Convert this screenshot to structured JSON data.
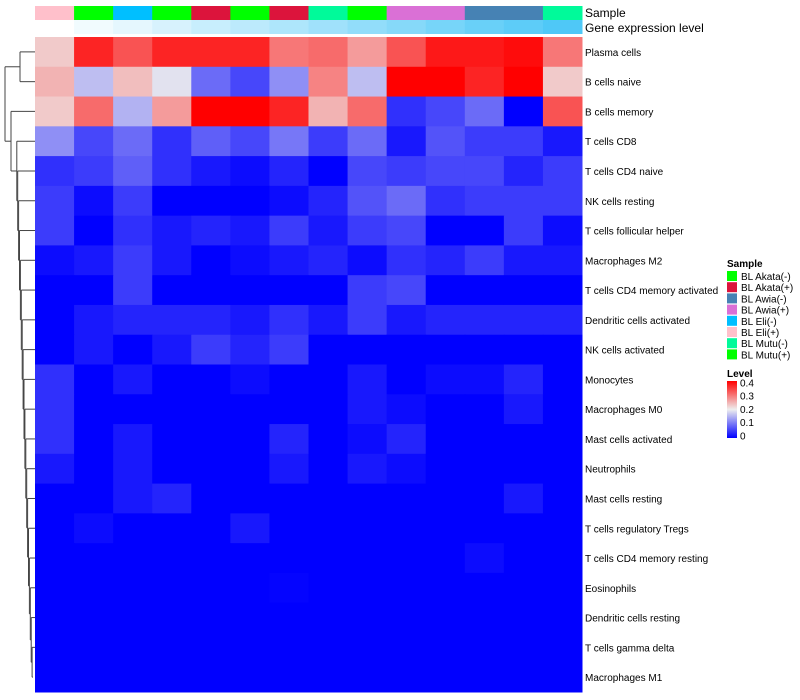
{
  "chart_data": {
    "type": "heatmap",
    "annotation_labels": {
      "sample": "Sample",
      "gene": "Gene expression level"
    },
    "columns_sample": [
      "BL Eli(+)",
      "BL Akata(-)",
      "BL Eli(-)",
      "BL Mutu(+)",
      "BL Akata(+)",
      "BL Akata(-)",
      "BL Akata(+)",
      "BL Mutu(-)",
      "BL Mutu(+)",
      "BL Awia(+)",
      "BL Awia(+)",
      "BL Awia(-)",
      "BL Awia(-)",
      "BL Mutu(-)"
    ],
    "gene_expression_level_relative": [
      0,
      0.08,
      0.15,
      0.23,
      0.31,
      0.38,
      0.46,
      0.54,
      0.62,
      0.69,
      0.77,
      0.85,
      0.92,
      1
    ],
    "rows": [
      "Plasma cells",
      "B cells naive",
      "B cells memory",
      "T cells CD8",
      "T cells CD4 naive",
      "NK cells resting",
      "T cells follicular helper",
      "Macrophages M2",
      "T cells CD4 memory activated",
      "Dendritic cells activated",
      "NK cells activated",
      "Monocytes",
      "Macrophages M0",
      "Mast cells activated",
      "Neutrophils",
      "Mast cells resting",
      "T cells regulatory  Tregs",
      "T cells CD4 memory resting",
      "Eosinophils",
      "Dendritic cells resting",
      "T cells gamma delta",
      "Macrophages M1"
    ],
    "values": [
      [
        0.23,
        0.37,
        0.33,
        0.37,
        0.37,
        0.37,
        0.3,
        0.31,
        0.27,
        0.33,
        0.38,
        0.38,
        0.39,
        0.3
      ],
      [
        0.25,
        0.16,
        0.24,
        0.19,
        0.09,
        0.06,
        0.12,
        0.29,
        0.16,
        0.41,
        0.41,
        0.37,
        0.41,
        0.23
      ],
      [
        0.23,
        0.31,
        0.15,
        0.27,
        0.4,
        0.41,
        0.37,
        0.25,
        0.31,
        0.04,
        0.06,
        0.09,
        0.0,
        0.33
      ],
      [
        0.12,
        0.06,
        0.09,
        0.04,
        0.08,
        0.06,
        0.1,
        0.05,
        0.09,
        0.02,
        0.07,
        0.05,
        0.05,
        0.02
      ],
      [
        0.04,
        0.05,
        0.08,
        0.04,
        0.02,
        0.01,
        0.03,
        0.0,
        0.06,
        0.05,
        0.06,
        0.06,
        0.03,
        0.05
      ],
      [
        0.05,
        0.01,
        0.05,
        0.0,
        0.0,
        0.0,
        0.01,
        0.03,
        0.07,
        0.09,
        0.04,
        0.05,
        0.05,
        0.05
      ],
      [
        0.05,
        0.0,
        0.04,
        0.02,
        0.03,
        0.02,
        0.05,
        0.02,
        0.05,
        0.06,
        0.0,
        0.0,
        0.05,
        0.01
      ],
      [
        0.01,
        0.02,
        0.05,
        0.02,
        0.0,
        0.01,
        0.02,
        0.03,
        0.01,
        0.04,
        0.03,
        0.05,
        0.02,
        0.02
      ],
      [
        0.0,
        0.0,
        0.05,
        0.0,
        0.0,
        0.0,
        0.0,
        0.0,
        0.05,
        0.06,
        0.0,
        0.0,
        0.0,
        0.0
      ],
      [
        0.0,
        0.02,
        0.03,
        0.03,
        0.03,
        0.02,
        0.04,
        0.02,
        0.05,
        0.02,
        0.03,
        0.03,
        0.03,
        0.03
      ],
      [
        0.0,
        0.02,
        0.0,
        0.02,
        0.05,
        0.03,
        0.05,
        0.0,
        0.0,
        0.0,
        0.0,
        0.0,
        0.0,
        0.0
      ],
      [
        0.04,
        0.0,
        0.02,
        0.0,
        0.0,
        0.01,
        0.0,
        0.0,
        0.02,
        0.0,
        0.01,
        0.01,
        0.03,
        0.0
      ],
      [
        0.04,
        0.0,
        0.0,
        0.0,
        0.0,
        0.0,
        0.0,
        0.0,
        0.02,
        0.01,
        0.0,
        0.0,
        0.02,
        0.0
      ],
      [
        0.04,
        0.0,
        0.02,
        0.0,
        0.0,
        0.0,
        0.03,
        0.0,
        0.01,
        0.03,
        0.0,
        0.0,
        0.0,
        0.0
      ],
      [
        0.02,
        0.0,
        0.02,
        0.0,
        0.0,
        0.0,
        0.02,
        0.0,
        0.02,
        0.01,
        0.0,
        0.0,
        0.0,
        0.0
      ],
      [
        0.0,
        0.0,
        0.02,
        0.03,
        0.0,
        0.0,
        0.0,
        0.0,
        0.0,
        0.0,
        0.0,
        0.0,
        0.02,
        0.0
      ],
      [
        0.0,
        0.01,
        0.0,
        0.0,
        0.0,
        0.02,
        0.0,
        0.0,
        0.0,
        0.0,
        0.0,
        0.0,
        0.0,
        0.0
      ],
      [
        0.0,
        0.0,
        0.0,
        0.0,
        0.0,
        0.0,
        0.0,
        0.0,
        0.0,
        0.0,
        0.0,
        0.01,
        0.0,
        0.0
      ],
      [
        0.0,
        0.0,
        0.0,
        0.0,
        0.0,
        0.0,
        0.003,
        0.0,
        0.0,
        0.0,
        0.0,
        0.0,
        0.0,
        0.0
      ],
      [
        0,
        0,
        0,
        0,
        0,
        0,
        0,
        0,
        0,
        0,
        0,
        0,
        0,
        0
      ],
      [
        0,
        0,
        0,
        0,
        0,
        0,
        0,
        0,
        0,
        0,
        0,
        0,
        0,
        0
      ],
      [
        0,
        0,
        0,
        0,
        0,
        0,
        0,
        0,
        0,
        0,
        0,
        0,
        0,
        0
      ]
    ],
    "color_range": [
      0,
      0.4
    ],
    "colors": {
      "low": "#0000FF",
      "mid": "#EEEEEE",
      "high": "#FF0000",
      "gene_low": "#FFFFFF",
      "gene_high": "#4FC8F7"
    },
    "legend": {
      "placement": "right",
      "sample_title": "Sample",
      "samples": [
        {
          "label": "BL Akata(-)",
          "color": "#00FF00"
        },
        {
          "label": "BL Akata(+)",
          "color": "#DC143C"
        },
        {
          "label": "BL Awia(-)",
          "color": "#4682B4"
        },
        {
          "label": "BL Awia(+)",
          "color": "#DA70D6"
        },
        {
          "label": "BL Eli(-)",
          "color": "#00BFFF"
        },
        {
          "label": "BL Eli(+)",
          "color": "#FFC0CB"
        },
        {
          "label": "BL Mutu(-)",
          "color": "#00FA9A"
        },
        {
          "label": "BL Mutu(+)",
          "color": "#00FF00"
        }
      ],
      "level_title": "Level",
      "level_ticks": [
        "0.4",
        "0.3",
        "0.2",
        "0.1",
        "0"
      ]
    }
  }
}
